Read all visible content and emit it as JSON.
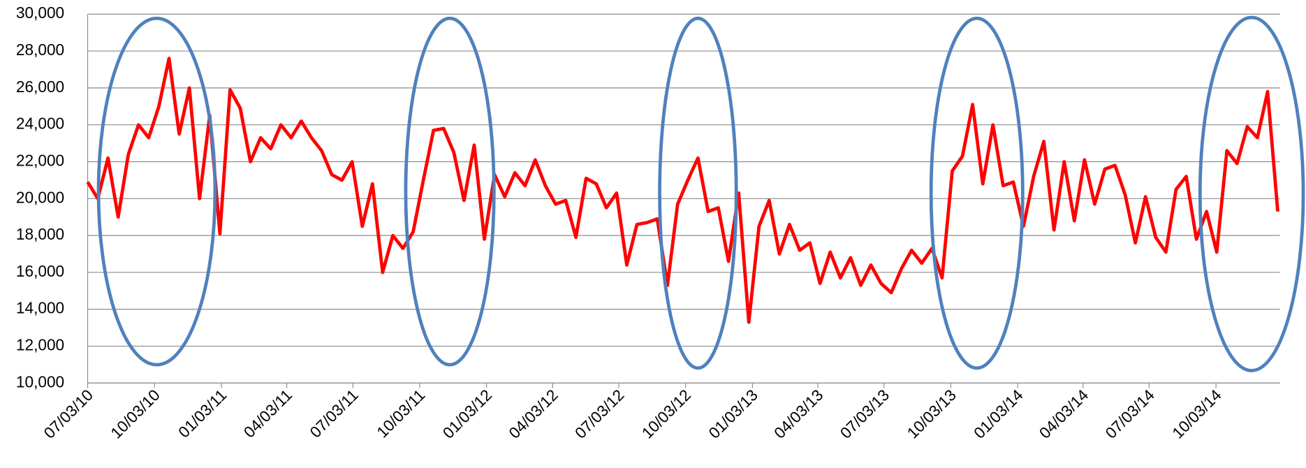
{
  "chart_data": {
    "type": "line",
    "x": [
      "2010-07-03",
      "2010-07-17",
      "2010-07-31",
      "2010-08-14",
      "2010-08-28",
      "2010-09-11",
      "2010-09-25",
      "2010-10-09",
      "2010-10-23",
      "2010-11-06",
      "2010-11-20",
      "2010-12-04",
      "2010-12-18",
      "2011-01-01",
      "2011-01-15",
      "2011-01-29",
      "2011-02-12",
      "2011-02-26",
      "2011-03-12",
      "2011-03-26",
      "2011-04-09",
      "2011-04-23",
      "2011-05-07",
      "2011-05-21",
      "2011-06-04",
      "2011-06-18",
      "2011-07-02",
      "2011-07-16",
      "2011-07-30",
      "2011-08-13",
      "2011-08-27",
      "2011-09-10",
      "2011-09-24",
      "2011-10-08",
      "2011-10-22",
      "2011-11-05",
      "2011-11-19",
      "2011-12-03",
      "2011-12-17",
      "2011-12-31",
      "2012-01-14",
      "2012-01-28",
      "2012-02-11",
      "2012-02-25",
      "2012-03-10",
      "2012-03-24",
      "2012-04-07",
      "2012-04-21",
      "2012-05-05",
      "2012-05-19",
      "2012-06-02",
      "2012-06-16",
      "2012-06-30",
      "2012-07-14",
      "2012-07-28",
      "2012-08-11",
      "2012-08-25",
      "2012-09-08",
      "2012-09-22",
      "2012-10-06",
      "2012-10-20",
      "2012-11-03",
      "2012-11-17",
      "2012-12-01",
      "2012-12-15",
      "2012-12-29",
      "2013-01-12",
      "2013-01-26",
      "2013-02-09",
      "2013-02-23",
      "2013-03-09",
      "2013-03-23",
      "2013-04-06",
      "2013-04-20",
      "2013-05-04",
      "2013-05-18",
      "2013-06-01",
      "2013-06-15",
      "2013-06-29",
      "2013-07-13",
      "2013-07-27",
      "2013-08-10",
      "2013-08-24",
      "2013-09-07",
      "2013-09-21",
      "2013-10-05",
      "2013-10-19",
      "2013-11-02",
      "2013-11-16",
      "2013-11-30",
      "2013-12-14",
      "2013-12-28",
      "2014-01-11",
      "2014-01-25",
      "2014-02-08",
      "2014-02-22",
      "2014-03-08",
      "2014-03-22",
      "2014-04-05",
      "2014-04-19",
      "2014-05-03",
      "2014-05-17",
      "2014-05-31",
      "2014-06-14",
      "2014-06-28",
      "2014-07-12",
      "2014-07-26",
      "2014-08-09",
      "2014-08-23",
      "2014-09-06",
      "2014-09-20",
      "2014-10-04",
      "2014-10-18",
      "2014-11-01",
      "2014-11-15",
      "2014-11-29",
      "2014-12-13",
      "2014-12-27"
    ],
    "series": [
      {
        "color": "#ff0000",
        "values": [
          20900,
          20000,
          22200,
          19000,
          22400,
          24000,
          23300,
          25000,
          27600,
          23500,
          26000,
          20000,
          24500,
          18100,
          25900,
          24900,
          22000,
          23300,
          22700,
          24000,
          23300,
          24200,
          23300,
          22600,
          21300,
          21000,
          22000,
          18500,
          20800,
          16000,
          18000,
          17300,
          18200,
          21000,
          23700,
          23800,
          22500,
          19900,
          22900,
          17800,
          21300,
          20100,
          21400,
          20700,
          22100,
          20700,
          19700,
          19900,
          17900,
          21100,
          20800,
          19500,
          20300,
          16400,
          18600,
          18700,
          18900,
          15300,
          19700,
          21000,
          22200,
          19300,
          19500,
          16600,
          20300,
          13300,
          18500,
          19900,
          17000,
          18600,
          17200,
          17600,
          15400,
          17100,
          15700,
          16800,
          15300,
          16400,
          15400,
          14900,
          16200,
          17200,
          16500,
          17300,
          15700,
          21500,
          22300,
          25100,
          20800,
          24000,
          20700,
          20900,
          18500,
          21200,
          23100,
          18300,
          22000,
          18800,
          22100,
          19700,
          21600,
          21800,
          20200,
          17600,
          20100,
          17900,
          17100,
          20500,
          21200,
          17800,
          19300,
          17100,
          22600,
          21900,
          23900,
          23300,
          25800,
          19300
        ]
      }
    ],
    "xlim": [
      "2010-07-03",
      "2014-12-30"
    ],
    "xticks": [
      {
        "value": "2010-07-03",
        "label": "07/03/10"
      },
      {
        "value": "2010-10-03",
        "label": "10/03/10"
      },
      {
        "value": "2011-01-03",
        "label": "01/03/11"
      },
      {
        "value": "2011-04-03",
        "label": "04/03/11"
      },
      {
        "value": "2011-07-03",
        "label": "07/03/11"
      },
      {
        "value": "2011-10-03",
        "label": "10/03/11"
      },
      {
        "value": "2012-01-03",
        "label": "01/03/12"
      },
      {
        "value": "2012-04-03",
        "label": "04/03/12"
      },
      {
        "value": "2012-07-03",
        "label": "07/03/12"
      },
      {
        "value": "2012-10-03",
        "label": "10/03/12"
      },
      {
        "value": "2013-01-03",
        "label": "01/03/13"
      },
      {
        "value": "2013-04-03",
        "label": "04/03/13"
      },
      {
        "value": "2013-07-03",
        "label": "07/03/13"
      },
      {
        "value": "2013-10-03",
        "label": "10/03/13"
      },
      {
        "value": "2014-01-03",
        "label": "01/03/14"
      },
      {
        "value": "2014-04-03",
        "label": "04/03/14"
      },
      {
        "value": "2014-07-03",
        "label": "07/03/14"
      },
      {
        "value": "2014-10-03",
        "label": "10/03/14"
      }
    ],
    "ylim": [
      10000,
      30000
    ],
    "yticks": [
      {
        "value": 10000,
        "label": "10,000"
      },
      {
        "value": 12000,
        "label": "12,000"
      },
      {
        "value": 14000,
        "label": "14,000"
      },
      {
        "value": 16000,
        "label": "16,000"
      },
      {
        "value": 18000,
        "label": "18,000"
      },
      {
        "value": 20000,
        "label": "20,000"
      },
      {
        "value": 22000,
        "label": "22,000"
      },
      {
        "value": 24000,
        "label": "24,000"
      },
      {
        "value": 26000,
        "label": "26,000"
      },
      {
        "value": 28000,
        "label": "28,000"
      },
      {
        "value": 30000,
        "label": "30,000"
      }
    ],
    "grid": true
  }
}
